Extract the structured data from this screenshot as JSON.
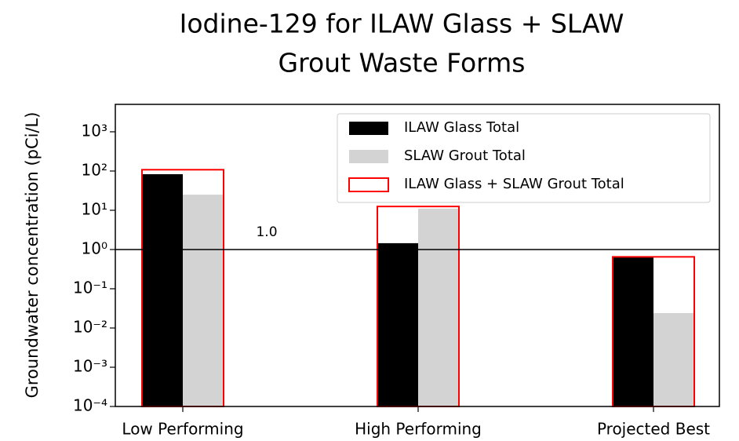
{
  "chart_data": {
    "type": "bar",
    "title": [
      "Iodine-129 for ILAW Glass + SLAW",
      "Grout Waste Forms"
    ],
    "y_label": "Groundwater concentration (pCi/L)",
    "categories": [
      "Low Performing",
      "High Performing",
      "Projected Best"
    ],
    "series": [
      {
        "name": "ILAW Glass Total",
        "color": "#000000",
        "style": "filled",
        "values": [
          83,
          1.45,
          0.63
        ]
      },
      {
        "name": "SLAW Grout Total",
        "color": "#d3d3d3",
        "style": "filled",
        "values": [
          25,
          11,
          0.024
        ]
      },
      {
        "name": "ILAW Glass + SLAW Grout Total",
        "color": "#ff0000",
        "style": "outline",
        "values": [
          108,
          12.5,
          0.65
        ]
      }
    ],
    "log_y": true,
    "ylim": [
      0.0001,
      5000
    ],
    "yticks": [
      {
        "value": 0.0001,
        "label": "10⁻⁴"
      },
      {
        "value": 0.001,
        "label": "10⁻³"
      },
      {
        "value": 0.01,
        "label": "10⁻²"
      },
      {
        "value": 0.1,
        "label": "10⁻¹"
      },
      {
        "value": 1,
        "label": "10⁰"
      },
      {
        "value": 10,
        "label": "10¹"
      },
      {
        "value": 100,
        "label": "10²"
      },
      {
        "value": 1000,
        "label": "10³"
      }
    ],
    "reference_line": {
      "value": 1,
      "label": "1.0"
    },
    "legend": "upper right"
  }
}
